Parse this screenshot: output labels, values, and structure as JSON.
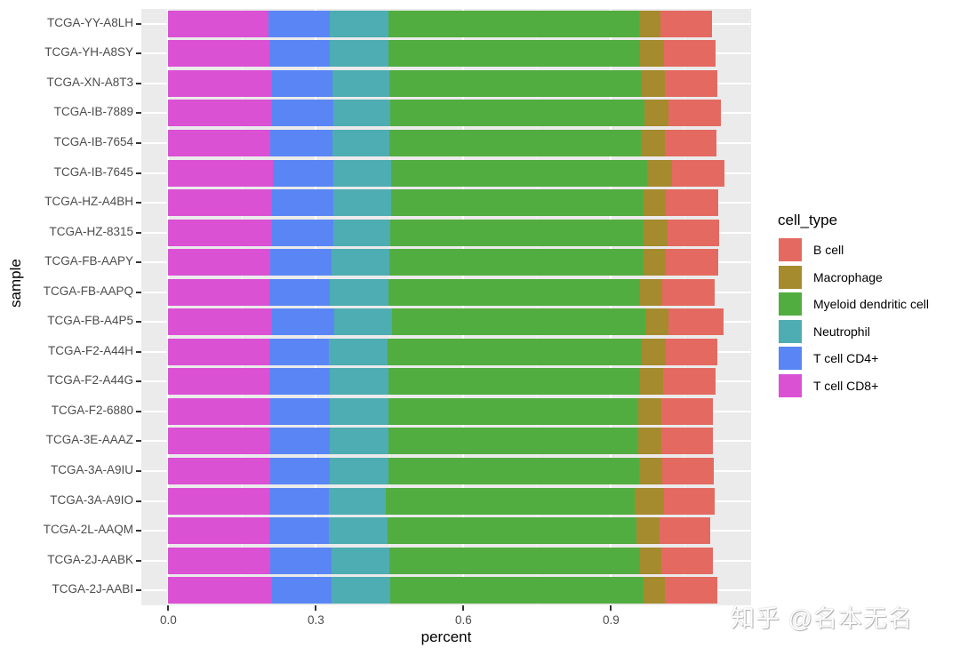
{
  "chart_data": {
    "type": "bar",
    "orientation": "horizontal",
    "stacked": true,
    "title": "",
    "xlabel": "percent",
    "ylabel": "sample",
    "xlim": [
      -0.055,
      1.185
    ],
    "x_ticks": [
      0.0,
      0.3,
      0.6,
      0.9
    ],
    "x_tick_labels": [
      "0.0",
      "0.3",
      "0.6",
      "0.9"
    ],
    "grid": true,
    "legend_position": "right",
    "legend_title": "cell_type",
    "stack_order": [
      "T cell CD8+",
      "T cell CD4+",
      "Neutrophil",
      "Myeloid dendritic cell",
      "Macrophage",
      "B cell"
    ],
    "categories": [
      "TCGA-YY-A8LH",
      "TCGA-YH-A8SY",
      "TCGA-XN-A8T3",
      "TCGA-IB-7889",
      "TCGA-IB-7654",
      "TCGA-IB-7645",
      "TCGA-HZ-A4BH",
      "TCGA-HZ-8315",
      "TCGA-FB-AAPY",
      "TCGA-FB-AAPQ",
      "TCGA-FB-A4P5",
      "TCGA-F2-A44H",
      "TCGA-F2-A44G",
      "TCGA-F2-6880",
      "TCGA-3E-AAAZ",
      "TCGA-3A-A9IU",
      "TCGA-3A-A9IO",
      "TCGA-2L-AAQM",
      "TCGA-2J-AABK",
      "TCGA-2J-AABI"
    ],
    "series": [
      {
        "name": "T cell CD8+",
        "color": "#DB51D3",
        "values": [
          0.204,
          0.206,
          0.21,
          0.21,
          0.208,
          0.212,
          0.21,
          0.21,
          0.208,
          0.206,
          0.21,
          0.206,
          0.206,
          0.208,
          0.208,
          0.208,
          0.206,
          0.206,
          0.208,
          0.21
        ]
      },
      {
        "name": "T cell CD4+",
        "color": "#5A86F5",
        "values": [
          0.125,
          0.123,
          0.123,
          0.125,
          0.125,
          0.123,
          0.125,
          0.125,
          0.123,
          0.123,
          0.127,
          0.121,
          0.123,
          0.121,
          0.121,
          0.121,
          0.121,
          0.121,
          0.123,
          0.121
        ]
      },
      {
        "name": "Neutrophil",
        "color": "#4EADB2",
        "values": [
          0.118,
          0.118,
          0.116,
          0.116,
          0.116,
          0.118,
          0.118,
          0.116,
          0.118,
          0.118,
          0.118,
          0.119,
          0.119,
          0.118,
          0.118,
          0.119,
          0.116,
          0.119,
          0.118,
          0.121
        ]
      },
      {
        "name": "Myeloid dendritic cell",
        "color": "#52AD40",
        "values": [
          0.51,
          0.512,
          0.514,
          0.517,
          0.512,
          0.521,
          0.514,
          0.515,
          0.517,
          0.512,
          0.515,
          0.517,
          0.512,
          0.508,
          0.508,
          0.51,
          0.505,
          0.506,
          0.51,
          0.514
        ]
      },
      {
        "name": "Macrophage",
        "color": "#A58B2E",
        "values": [
          0.043,
          0.049,
          0.047,
          0.049,
          0.049,
          0.051,
          0.045,
          0.049,
          0.045,
          0.045,
          0.047,
          0.049,
          0.047,
          0.047,
          0.047,
          0.047,
          0.06,
          0.047,
          0.043,
          0.043
        ]
      },
      {
        "name": "B cell",
        "color": "#E46A61",
        "values": [
          0.105,
          0.105,
          0.107,
          0.107,
          0.105,
          0.105,
          0.107,
          0.105,
          0.107,
          0.107,
          0.112,
          0.105,
          0.105,
          0.105,
          0.105,
          0.105,
          0.103,
          0.103,
          0.105,
          0.107
        ]
      }
    ]
  },
  "legend": {
    "title": "cell_type",
    "items": [
      {
        "label": "B cell",
        "color": "#E46A61"
      },
      {
        "label": "Macrophage",
        "color": "#A58B2E"
      },
      {
        "label": "Myeloid dendritic cell",
        "color": "#52AD40"
      },
      {
        "label": "Neutrophil",
        "color": "#4EADB2"
      },
      {
        "label": "T cell CD4+",
        "color": "#5A86F5"
      },
      {
        "label": "T cell CD8+",
        "color": "#DB51D3"
      }
    ]
  },
  "axes": {
    "xlabel": "percent",
    "ylabel": "sample"
  },
  "watermark": "知乎 @名本无名"
}
